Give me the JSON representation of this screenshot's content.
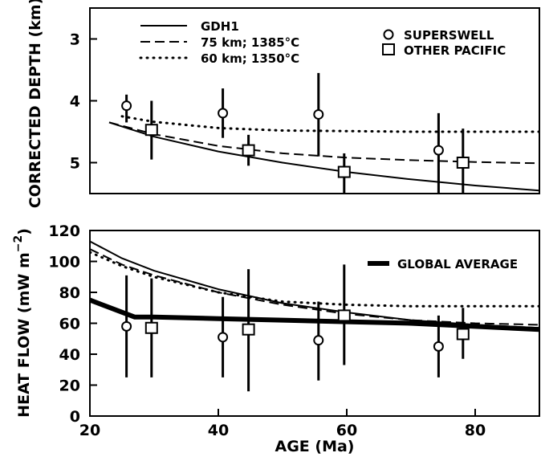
{
  "chart_data": [
    {
      "type": "line",
      "ylabel": "CORRECTED DEPTH (km)",
      "xlim": [
        20,
        90
      ],
      "ylim": [
        5.5,
        2.5
      ],
      "y_inverted": true,
      "yticks": [
        3,
        4,
        5
      ],
      "y_tick_labels": [
        "3",
        "4",
        "5"
      ],
      "grid": false,
      "legend_lines_placement": "top-left",
      "legend_markers_placement": "top-right",
      "series": [
        {
          "name": "GDH1",
          "style": "solid",
          "x": [
            23,
            30,
            40,
            50,
            60,
            70,
            80,
            90
          ],
          "y": [
            4.35,
            4.58,
            4.82,
            5.0,
            5.15,
            5.27,
            5.37,
            5.45
          ]
        },
        {
          "name": "75 km; 1385°C",
          "style": "dashed",
          "x": [
            23,
            30,
            40,
            50,
            60,
            70,
            80,
            90
          ],
          "y": [
            4.35,
            4.54,
            4.73,
            4.85,
            4.92,
            4.96,
            4.99,
            5.01
          ]
        },
        {
          "name": "60 km; 1350°C",
          "style": "dotted",
          "x": [
            25,
            30,
            40,
            50,
            60,
            70,
            80,
            90
          ],
          "y": [
            4.25,
            4.34,
            4.44,
            4.48,
            4.49,
            4.5,
            4.5,
            4.5
          ]
        },
        {
          "name": "SUPERSWELL",
          "style": "marker-circle",
          "x": [
            25.7,
            40.7,
            55.6,
            74.3
          ],
          "y": [
            4.08,
            4.2,
            4.22,
            4.8
          ],
          "err_low": [
            3.9,
            3.8,
            3.55,
            4.2
          ],
          "err_high": [
            4.35,
            4.6,
            4.9,
            5.5
          ]
        },
        {
          "name": "OTHER PACIFIC",
          "style": "marker-square",
          "x": [
            29.6,
            44.7,
            59.6,
            78.1
          ],
          "y": [
            4.47,
            4.8,
            5.15,
            5.0
          ],
          "err_low": [
            4.0,
            4.55,
            4.85,
            4.45
          ],
          "err_high": [
            4.95,
            5.05,
            5.5,
            5.5
          ]
        }
      ]
    },
    {
      "type": "line",
      "xlabel": "AGE (Ma)",
      "ylabel": "HEAT FLOW (mW m",
      "ylabel_sup": "−2",
      "ylabel_end": ")",
      "xlim": [
        20,
        90
      ],
      "ylim": [
        0,
        120
      ],
      "xticks": [
        20,
        40,
        60,
        80
      ],
      "x_tick_labels": [
        "20",
        "40",
        "60",
        "80"
      ],
      "yticks": [
        0,
        20,
        40,
        60,
        80,
        100,
        120
      ],
      "y_tick_labels": [
        "0",
        "20",
        "40",
        "60",
        "80",
        "100",
        "120"
      ],
      "grid": false,
      "legend_placement": "top-right",
      "series": [
        {
          "name": "GLOBAL AVERAGE",
          "style": "thick",
          "x": [
            20,
            27,
            30,
            40,
            50,
            60,
            70,
            80,
            90
          ],
          "y": [
            75,
            64,
            64,
            63,
            62,
            61,
            60,
            58,
            56
          ]
        },
        {
          "style": "solid",
          "x": [
            20,
            25,
            30,
            40,
            50,
            60,
            70,
            80,
            90
          ],
          "y": [
            113,
            102,
            94,
            82,
            73,
            67,
            62,
            59,
            57
          ]
        },
        {
          "style": "dashed",
          "x": [
            20,
            25,
            30,
            40,
            50,
            60,
            70,
            80,
            90
          ],
          "y": [
            108,
            98,
            91,
            80,
            72,
            66,
            62,
            60,
            59
          ]
        },
        {
          "style": "dotted",
          "x": [
            20,
            25,
            30,
            40,
            50,
            60,
            70,
            80,
            90
          ],
          "y": [
            106,
            97,
            90,
            80,
            74,
            72,
            71,
            71,
            71
          ]
        },
        {
          "style": "marker-circle",
          "x": [
            25.7,
            40.7,
            55.6,
            74.3
          ],
          "y": [
            58,
            51,
            49,
            45
          ],
          "err_low": [
            25,
            25,
            23,
            25
          ],
          "err_high": [
            91,
            77,
            74,
            65
          ]
        },
        {
          "style": "marker-square",
          "x": [
            29.6,
            44.7,
            59.6,
            78.1
          ],
          "y": [
            57,
            56,
            65,
            53
          ],
          "err_low": [
            25,
            16,
            33,
            37
          ],
          "err_high": [
            89,
            95,
            98,
            70
          ]
        }
      ]
    }
  ]
}
